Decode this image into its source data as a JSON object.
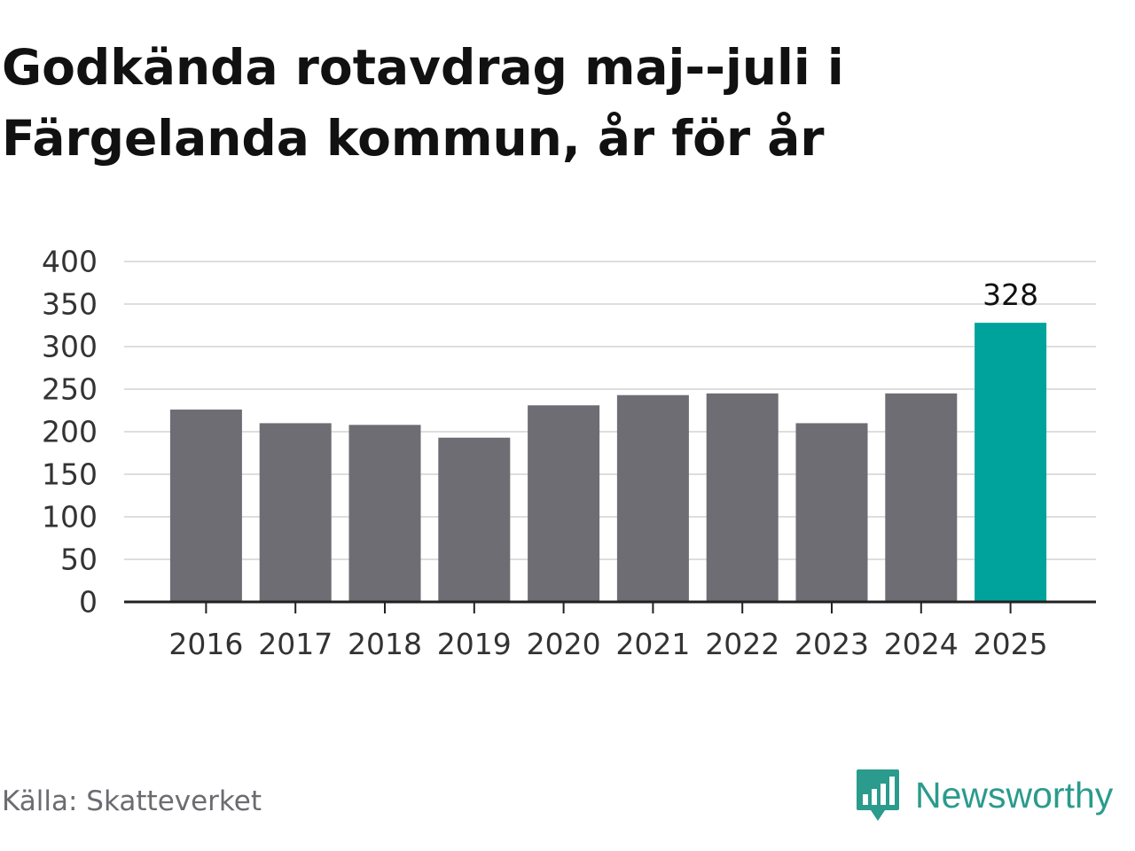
{
  "title": "Godkända rotavdrag maj--juli i Färgelanda kommun, år för år",
  "source": "Källa: Skatteverket",
  "brand": {
    "name": "Newsworthy",
    "icon": "newsworthy-logo-icon"
  },
  "colors": {
    "bar": "#6e6d73",
    "highlight": "#00a39b",
    "grid": "#dedede",
    "axis": "#222222",
    "brand": "#2a9b8c"
  },
  "chart_data": {
    "type": "bar",
    "categories": [
      "2016",
      "2017",
      "2018",
      "2019",
      "2020",
      "2021",
      "2022",
      "2023",
      "2024",
      "2025"
    ],
    "values": [
      226,
      210,
      208,
      193,
      231,
      243,
      245,
      210,
      245,
      328
    ],
    "highlight_index": 9,
    "data_labels": [
      {
        "index": 9,
        "text": "328"
      }
    ],
    "yticks": [
      "0",
      "50",
      "100",
      "150",
      "200",
      "250",
      "300",
      "350",
      "400"
    ],
    "ylim": [
      0,
      400
    ],
    "grid": true,
    "legend": false
  }
}
